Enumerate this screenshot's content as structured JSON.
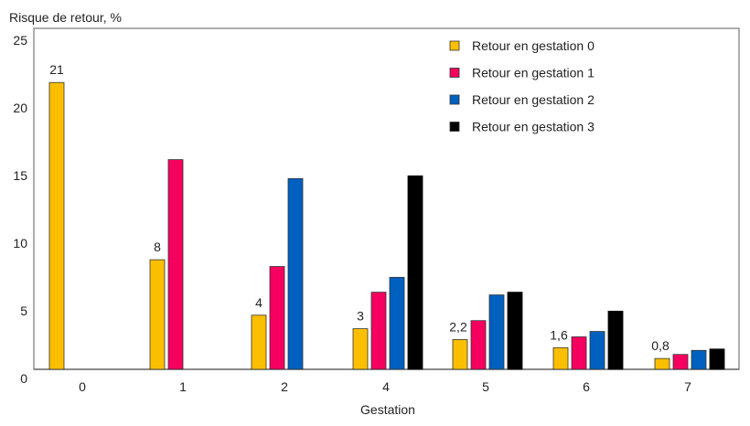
{
  "chart_data": {
    "type": "bar",
    "title": "",
    "ylabel": "Risque de retour, %",
    "xlabel": "Gestation",
    "ylim": [
      0,
      25
    ],
    "yticks": [
      0,
      5,
      10,
      15,
      20,
      25
    ],
    "grid": false,
    "legend_placement": "top-right",
    "categories": [
      "0",
      "1",
      "2",
      "4",
      "5",
      "6",
      "7"
    ],
    "series": [
      {
        "name": "Retour en gestation 0",
        "color": "#fbbf00",
        "values": [
          21.2,
          8.1,
          4.0,
          3.0,
          2.2,
          1.6,
          0.8
        ]
      },
      {
        "name": "Retour en gestation 1",
        "color": "#f5005f",
        "values": [
          null,
          15.5,
          7.6,
          5.7,
          3.6,
          2.4,
          1.1
        ]
      },
      {
        "name": "Retour en gestation 2",
        "color": "#0060c0",
        "values": [
          null,
          null,
          14.1,
          6.8,
          5.5,
          2.8,
          1.4
        ]
      },
      {
        "name": "Retour en gestation 3",
        "color": "#000000",
        "values": [
          null,
          null,
          null,
          14.3,
          5.7,
          4.3,
          1.5
        ]
      }
    ],
    "data_labels": [
      "21",
      "8",
      "4",
      "3",
      "2,2",
      "1,6",
      "0,8"
    ]
  }
}
